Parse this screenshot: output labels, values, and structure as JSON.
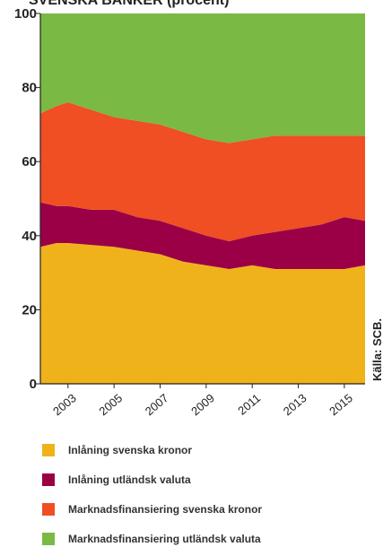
{
  "chart_data": {
    "type": "stacked_area",
    "title": "SVENSKA BANKER (procent)",
    "source": "Källa: SCB.",
    "x": [
      2001.8,
      2002.5,
      2003,
      2004,
      2005,
      2006,
      2007,
      2008,
      2009,
      2010,
      2011,
      2012,
      2013,
      2014,
      2015,
      2015.9
    ],
    "series": [
      {
        "name": "Inlåning svenska kronor",
        "color": "#f0b21a",
        "values": [
          37,
          38,
          38,
          37.5,
          37,
          36,
          35,
          33,
          32,
          31,
          32,
          31,
          31,
          31,
          31,
          32
        ]
      },
      {
        "name": "Inlåning utländsk valuta",
        "color": "#9b0046",
        "values": [
          12,
          10,
          10,
          9.5,
          10,
          9,
          9,
          9,
          8,
          7.5,
          8,
          10,
          11,
          12,
          14,
          12
        ]
      },
      {
        "name": "Marknadsfinansiering svenska kronor",
        "color": "#f04e23",
        "values": [
          24,
          27,
          28,
          27,
          25,
          26,
          26,
          26,
          26,
          26.5,
          26,
          26,
          25,
          24,
          22,
          23
        ]
      },
      {
        "name": "Marknadsfinansiering utländsk valuta",
        "color": "#7ab943",
        "values": [
          27,
          25,
          24,
          26,
          28,
          29,
          30,
          32,
          34,
          35,
          34,
          33,
          33,
          33,
          33,
          33
        ]
      }
    ],
    "xlim": [
      2001.8,
      2015.9
    ],
    "xticks": [
      2003,
      2005,
      2007,
      2009,
      2011,
      2013,
      2015
    ],
    "ylim": [
      0,
      100
    ],
    "yticks": [
      0,
      20,
      40,
      60,
      80,
      100
    ]
  }
}
